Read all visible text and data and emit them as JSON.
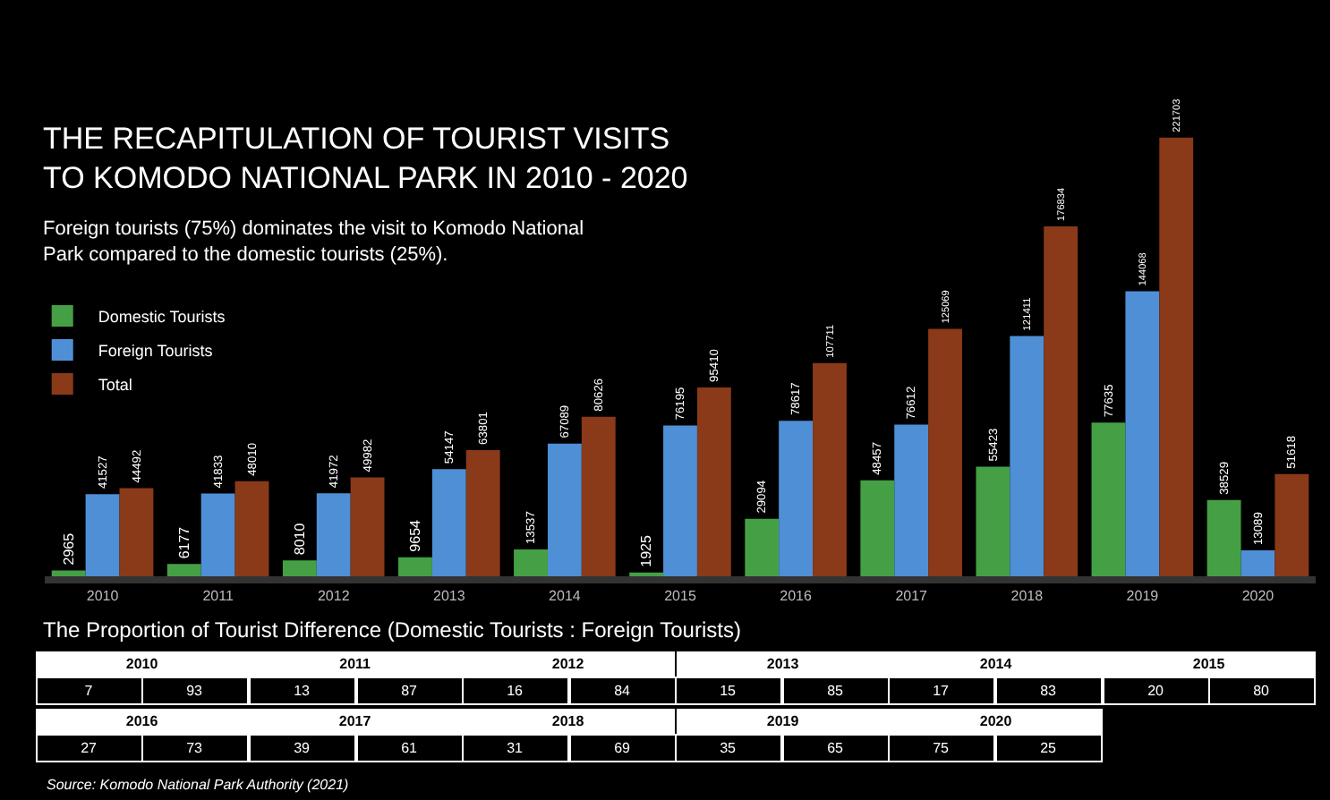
{
  "chart_data": {
    "type": "bar",
    "title": "THE RECAPITULATION OF TOURIST VISITS  TO KOMODO NATIONAL PARK IN 2010 - 2020",
    "subtitle": "Foreign tourists (75%) dominates the visit to Komodo National Park compared to the domestic tourists (25%).",
    "categories": [
      "2010",
      "2011",
      "2012",
      "2013",
      "2014",
      "2015",
      "2016",
      "2017",
      "2018",
      "2019",
      "2020"
    ],
    "series": [
      {
        "name": "Domestic Tourists",
        "color": "#45a045",
        "values": [
          2965,
          6177,
          8010,
          9654,
          13537,
          1925,
          29094,
          48457,
          55423,
          77635,
          38529
        ]
      },
      {
        "name": "Foreign Tourists",
        "color": "#4f8fd6",
        "values": [
          41527,
          41833,
          41972,
          54147,
          67089,
          76195,
          78617,
          76612,
          121411,
          144068,
          13089
        ]
      },
      {
        "name": "Total",
        "color": "#8a3a18",
        "values": [
          44492,
          48010,
          49982,
          63801,
          80626,
          95410,
          107711,
          125069,
          176834,
          221703,
          51618
        ]
      }
    ],
    "data_labels": true,
    "legend": "top left",
    "grid": false,
    "annotations": [
      "The Proportion of Tourist Difference (Domestic Tourists : Foreign Tourists)",
      "7",
      "93",
      "13",
      "87",
      "16",
      "84",
      "15",
      "85",
      "17",
      "83",
      "20",
      "80",
      "27",
      "73",
      "39",
      "61",
      "31",
      "69",
      "35",
      "65",
      "75",
      "25",
      "Source: Komodo National Park Authority (2021)"
    ]
  }
}
